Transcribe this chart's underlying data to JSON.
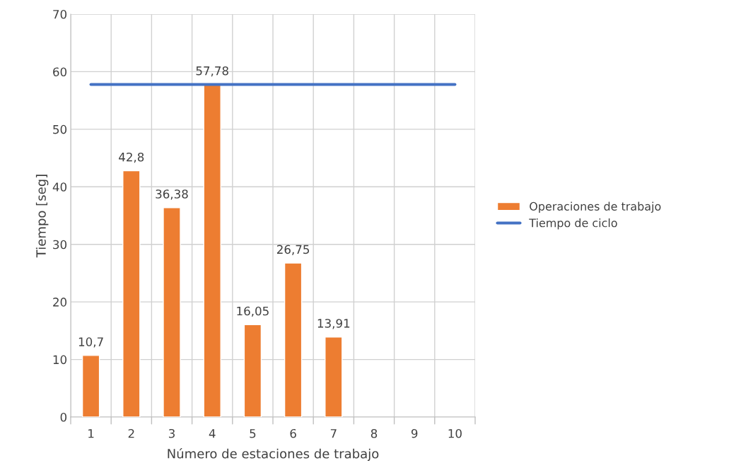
{
  "chart_data": {
    "type": "bar",
    "xlabel": "Número de estaciones de trabajo",
    "ylabel": "Tiempo [seg]",
    "categories": [
      "1",
      "2",
      "3",
      "4",
      "5",
      "6",
      "7",
      "8",
      "9",
      "10"
    ],
    "series": [
      {
        "name": "Operaciones de trabajo",
        "color": "#ed7d31",
        "values": [
          10.7,
          42.8,
          36.38,
          57.78,
          16.05,
          26.75,
          13.91,
          null,
          null,
          null
        ]
      },
      {
        "name": "Tiempo de ciclo",
        "type": "line",
        "color": "#4472c4",
        "values": [
          57.78,
          57.78,
          57.78,
          57.78,
          57.78,
          57.78,
          57.78,
          57.78,
          57.78,
          57.78
        ]
      }
    ],
    "value_labels": [
      "10,7",
      "42,8",
      "36,38",
      "57,78",
      "16,05",
      "26,75",
      "13,91",
      null,
      null,
      null
    ],
    "ylim": [
      0,
      70
    ],
    "yticks": [
      0,
      10,
      20,
      30,
      40,
      50,
      60,
      70
    ],
    "grid": true,
    "legend": "right",
    "marker": "none"
  }
}
